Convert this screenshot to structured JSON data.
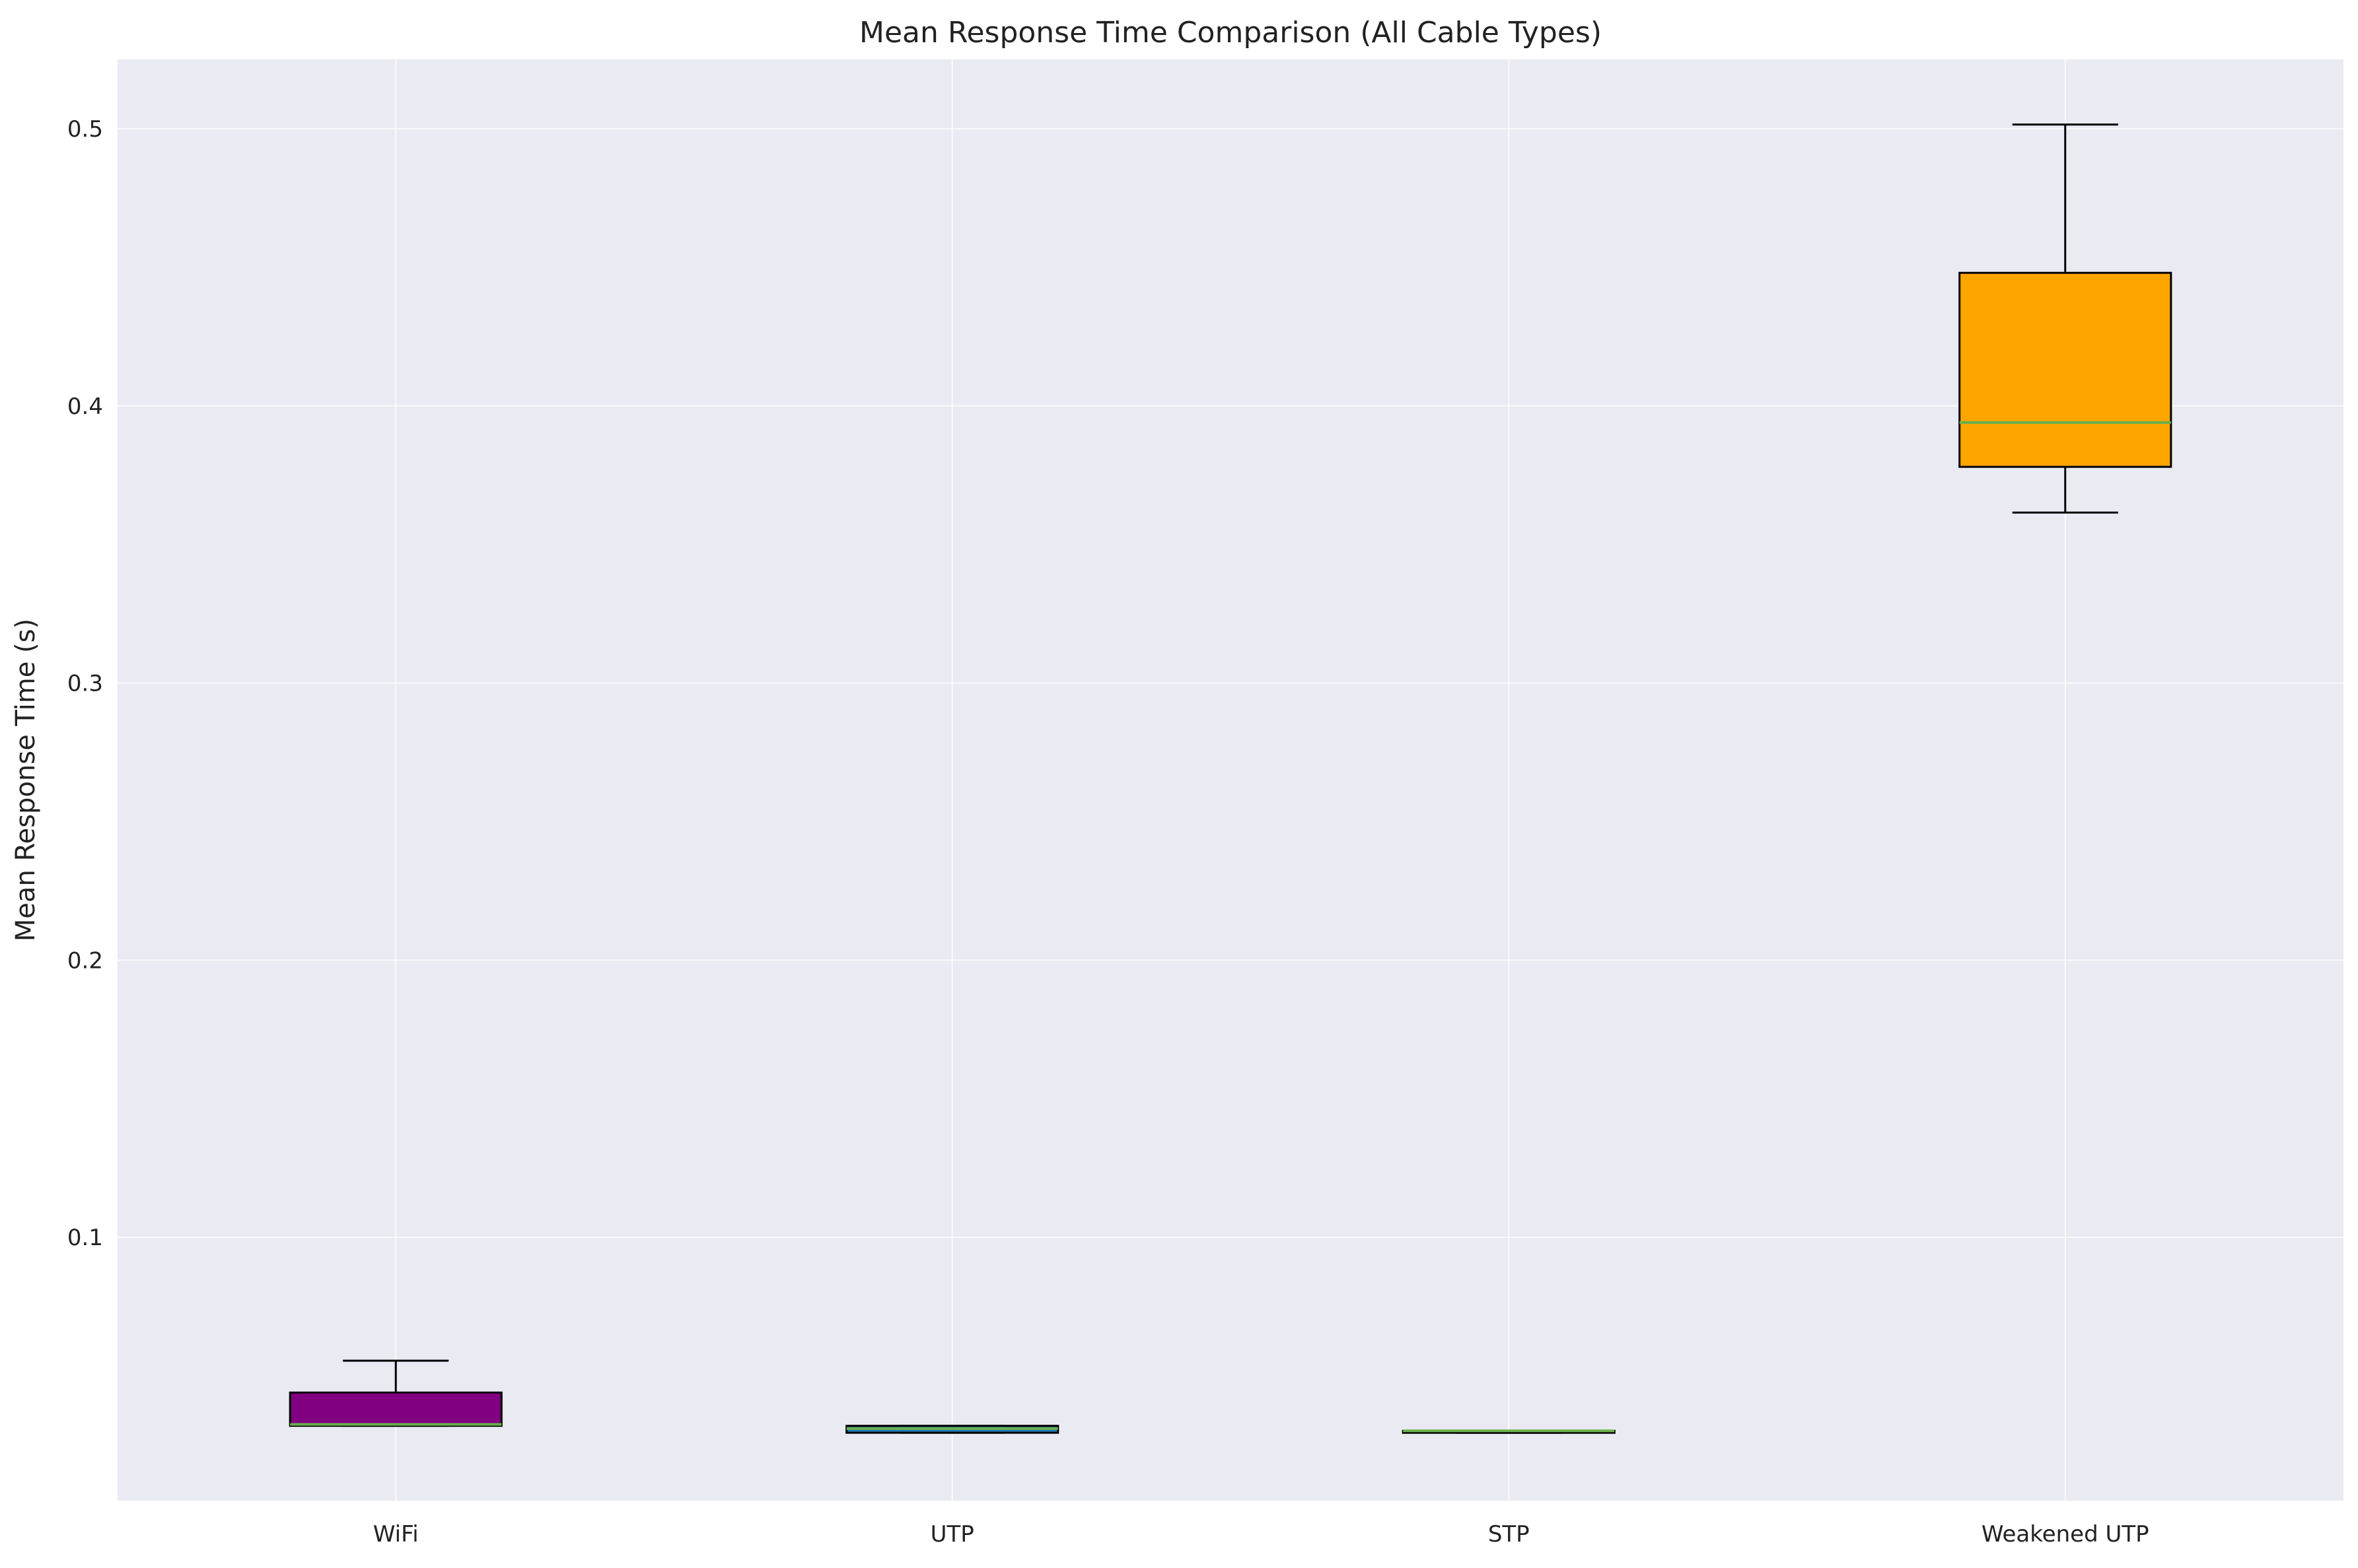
{
  "chart_data": {
    "type": "box",
    "title": "Mean Response Time Comparison (All Cable Types)",
    "xlabel": "",
    "ylabel": "Mean Response Time (s)",
    "ylim": [
      0.005,
      0.525
    ],
    "yticks": [
      0.1,
      0.2,
      0.3,
      0.4,
      0.5
    ],
    "ytick_labels": [
      "0.1",
      "0.2",
      "0.3",
      "0.4",
      "0.5"
    ],
    "grid": true,
    "categories": [
      "WiFi",
      "UTP",
      "STP",
      "Weakened UTP"
    ],
    "boxes": [
      {
        "label": "WiFi",
        "whisker_low": 0.032,
        "q1": 0.032,
        "median": 0.0325,
        "q3": 0.044,
        "whisker_high": 0.0555,
        "color": "#800080"
      },
      {
        "label": "UTP",
        "whisker_low": 0.0295,
        "q1": 0.0295,
        "median": 0.031,
        "q3": 0.032,
        "whisker_high": 0.032,
        "color": "#1f77b4"
      },
      {
        "label": "STP",
        "whisker_low": 0.0295,
        "q1": 0.0295,
        "median": 0.0302,
        "q3": 0.0302,
        "whisker_high": 0.0302,
        "color": "#d62728"
      },
      {
        "label": "Weakened UTP",
        "whisker_low": 0.3615,
        "q1": 0.378,
        "median": 0.394,
        "q3": 0.448,
        "whisker_high": 0.5015,
        "color": "#ffa500"
      }
    ],
    "median_color": "#6ab04c",
    "plot_background": "#eaeaf2"
  }
}
